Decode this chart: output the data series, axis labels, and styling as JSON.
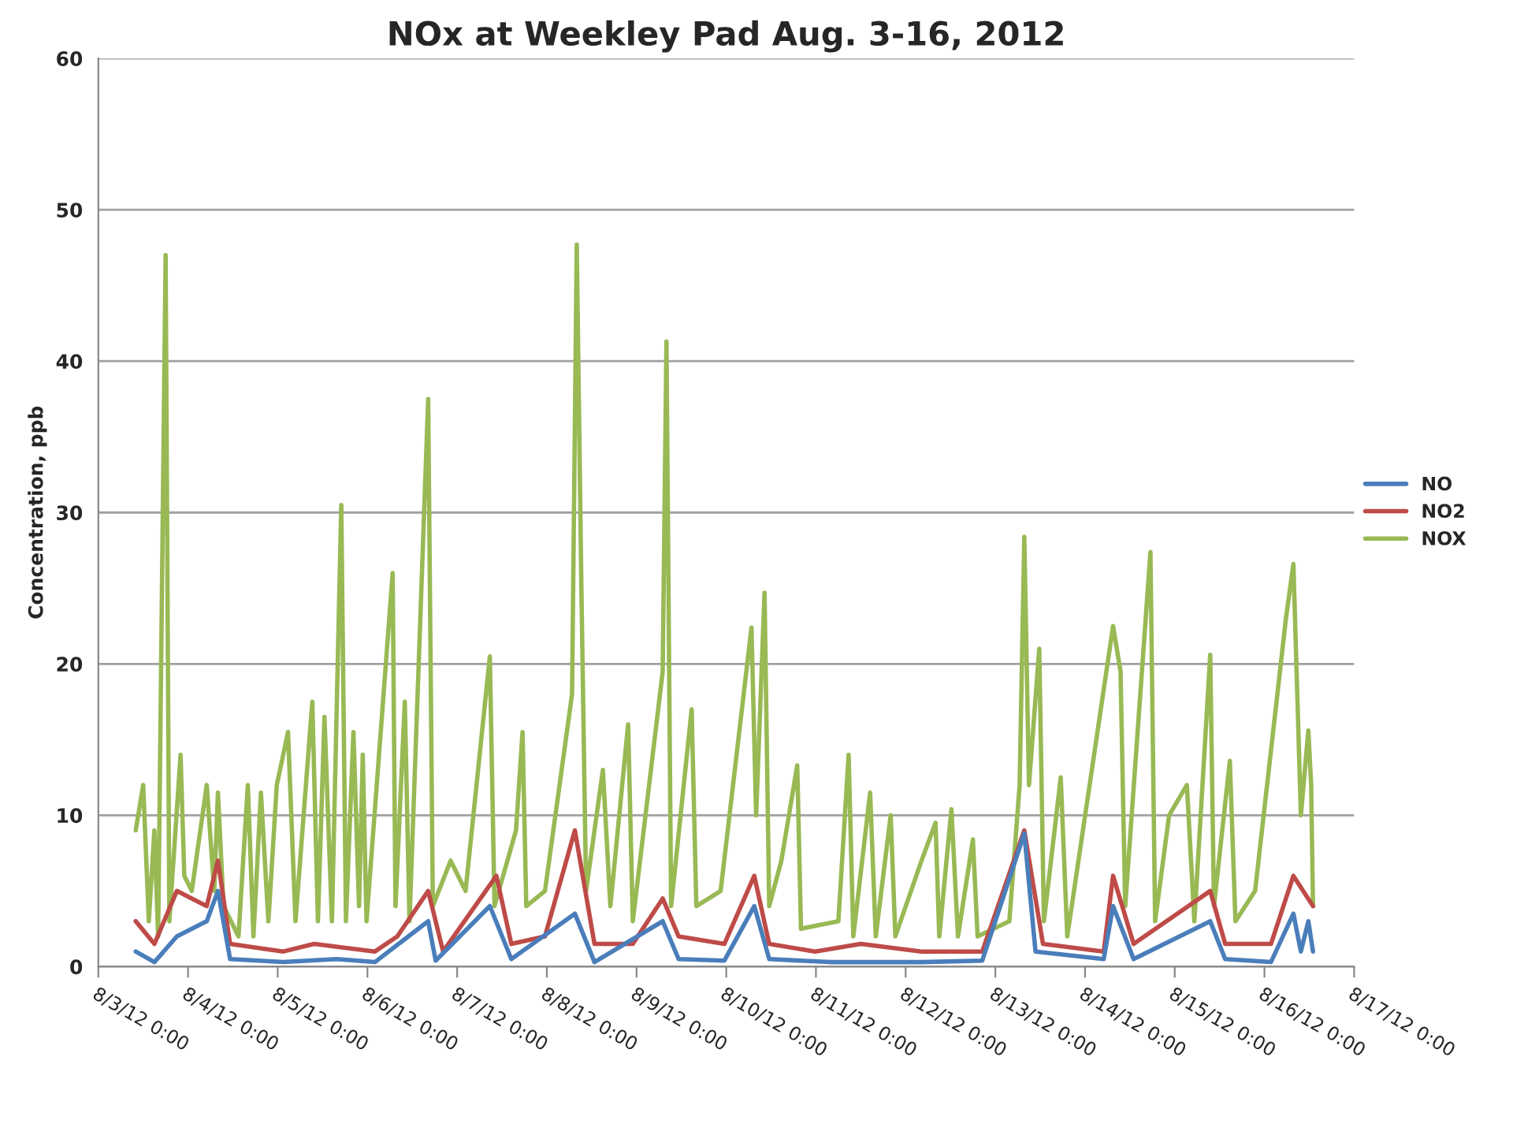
{
  "chart_data": {
    "type": "line",
    "title": "NOx at Weekley Pad Aug. 3-16, 2012",
    "ylabel": "Concentration, ppb",
    "xlim": [
      "2012-08-03",
      "2012-08-17"
    ],
    "xticks": [
      {
        "value": "2012-08-03",
        "label": "8/3/12 0:00"
      },
      {
        "value": "2012-08-04",
        "label": "8/4/12 0:00"
      },
      {
        "value": "2012-08-05",
        "label": "8/5/12 0:00"
      },
      {
        "value": "2012-08-06",
        "label": "8/6/12 0:00"
      },
      {
        "value": "2012-08-07",
        "label": "8/7/12 0:00"
      },
      {
        "value": "2012-08-08",
        "label": "8/8/12 0:00"
      },
      {
        "value": "2012-08-09",
        "label": "8/9/12 0:00"
      },
      {
        "value": "2012-08-10",
        "label": "8/10/12 0:00"
      },
      {
        "value": "2012-08-11",
        "label": "8/11/12 0:00"
      },
      {
        "value": "2012-08-12",
        "label": "8/12/12 0:00"
      },
      {
        "value": "2012-08-13",
        "label": "8/13/12 0:00"
      },
      {
        "value": "2012-08-14",
        "label": "8/14/12 0:00"
      },
      {
        "value": "2012-08-15",
        "label": "8/15/12 0:00"
      },
      {
        "value": "2012-08-16",
        "label": "8/16/12 0:00"
      },
      {
        "value": "2012-08-17",
        "label": "8/17/12 0:00"
      }
    ],
    "ylim": [
      0,
      60
    ],
    "yticks": [
      0,
      10,
      20,
      30,
      40,
      50,
      60
    ],
    "grid": "y",
    "legend": "right",
    "marker": "none",
    "line_style": "solid",
    "series": [
      {
        "name": "NO",
        "color": "#4a7ebb",
        "x": [
          "2012-08-03T10:00",
          "2012-08-03T15:00",
          "2012-08-03T21:00",
          "2012-08-04T05:00",
          "2012-08-04T08:00",
          "2012-08-04T11:15",
          "2012-08-05T01:30",
          "2012-08-05T15:45",
          "2012-08-06T02:00",
          "2012-08-06T16:15",
          "2012-08-06T18:15",
          "2012-08-07T08:45",
          "2012-08-07T14:30",
          "2012-08-08T07:30",
          "2012-08-08T12:45",
          "2012-08-09T07:00",
          "2012-08-09T11:15",
          "2012-08-09T23:30",
          "2012-08-10T07:30",
          "2012-08-10T11:30",
          "2012-08-11T03:45",
          "2012-08-12T04:15",
          "2012-08-12T20:30",
          "2012-08-13T07:45",
          "2012-08-13T10:45",
          "2012-08-14T05:00",
          "2012-08-14T07:30",
          "2012-08-14T13:00",
          "2012-08-15T09:30",
          "2012-08-15T13:30",
          "2012-08-16T01:45",
          "2012-08-16T07:45",
          "2012-08-16T09:45",
          "2012-08-16T11:45",
          "2012-08-16T13:00"
        ],
        "values": [
          1,
          0.3,
          2,
          3,
          5,
          0.5,
          0.3,
          0.5,
          0.3,
          3,
          0.4,
          4,
          0.5,
          3.5,
          0.3,
          3,
          0.5,
          0.4,
          4,
          0.5,
          0.3,
          0.3,
          0.4,
          8.8,
          1,
          0.5,
          4,
          0.5,
          3,
          0.5,
          0.3,
          3.5,
          1,
          3,
          1
        ]
      },
      {
        "name": "NO2",
        "color": "#be4b48",
        "x": [
          "2012-08-03T10:00",
          "2012-08-03T15:00",
          "2012-08-03T21:00",
          "2012-08-04T05:00",
          "2012-08-04T08:00",
          "2012-08-04T11:15",
          "2012-08-05T01:30",
          "2012-08-05T09:45",
          "2012-08-06T02:00",
          "2012-08-06T08:00",
          "2012-08-06T16:15",
          "2012-08-06T20:15",
          "2012-08-07T10:30",
          "2012-08-07T14:30",
          "2012-08-07T23:30",
          "2012-08-08T07:30",
          "2012-08-08T12:45",
          "2012-08-08T23:00",
          "2012-08-09T07:00",
          "2012-08-09T11:15",
          "2012-08-09T23:30",
          "2012-08-10T07:30",
          "2012-08-10T11:30",
          "2012-08-10T23:45",
          "2012-08-11T12:00",
          "2012-08-12T04:15",
          "2012-08-12T12:15",
          "2012-08-12T20:30",
          "2012-08-13T07:45",
          "2012-08-13T12:45",
          "2012-08-14T05:00",
          "2012-08-14T07:30",
          "2012-08-14T13:00",
          "2012-08-15T09:30",
          "2012-08-15T13:30",
          "2012-08-16T01:45",
          "2012-08-16T07:45",
          "2012-08-16T13:00"
        ],
        "values": [
          3,
          1.5,
          5,
          4,
          7,
          1.5,
          1,
          1.5,
          1,
          2,
          5,
          1,
          6,
          1.5,
          2,
          9,
          1.5,
          1.5,
          4.5,
          2,
          1.5,
          6,
          1.5,
          1,
          1.5,
          1,
          1,
          1,
          9,
          1.5,
          1,
          6,
          1.5,
          5,
          1.5,
          1.5,
          6,
          4
        ]
      },
      {
        "name": "NOX",
        "color": "#98b954",
        "x": [
          "2012-08-03T10:00",
          "2012-08-03T12:00",
          "2012-08-03T13:30",
          "2012-08-03T15:00",
          "2012-08-03T16:00",
          "2012-08-03T18:00",
          "2012-08-03T19:00",
          "2012-08-03T22:00",
          "2012-08-03T23:00",
          "2012-08-04T01:00",
          "2012-08-04T05:00",
          "2012-08-04T07:00",
          "2012-08-04T08:00",
          "2012-08-04T09:30",
          "2012-08-04T13:30",
          "2012-08-04T16:00",
          "2012-08-04T17:30",
          "2012-08-04T19:30",
          "2012-08-04T21:30",
          "2012-08-04T23:45",
          "2012-08-05T02:45",
          "2012-08-05T04:45",
          "2012-08-05T09:15",
          "2012-08-05T10:45",
          "2012-08-05T12:30",
          "2012-08-05T14:30",
          "2012-08-05T17:00",
          "2012-08-05T18:15",
          "2012-08-05T20:15",
          "2012-08-05T21:45",
          "2012-08-05T22:45",
          "2012-08-05T23:45",
          "2012-08-06T06:45",
          "2012-08-06T07:30",
          "2012-08-06T10:00",
          "2012-08-06T11:15",
          "2012-08-06T16:15",
          "2012-08-06T17:30",
          "2012-08-06T22:15",
          "2012-08-07T02:15",
          "2012-08-07T08:45",
          "2012-08-07T10:00",
          "2012-08-07T15:45",
          "2012-08-07T17:30",
          "2012-08-07T18:30",
          "2012-08-07T23:30",
          "2012-08-08T06:45",
          "2012-08-08T08:00",
          "2012-08-08T09:15",
          "2012-08-08T10:30",
          "2012-08-08T15:00",
          "2012-08-08T17:00",
          "2012-08-08T21:45",
          "2012-08-08T23:00",
          "2012-08-09T07:00",
          "2012-08-09T08:00",
          "2012-08-09T09:15",
          "2012-08-09T14:45",
          "2012-08-09T16:00",
          "2012-08-09T22:30",
          "2012-08-10T06:45",
          "2012-08-10T08:00",
          "2012-08-10T10:15",
          "2012-08-10T11:30",
          "2012-08-10T14:45",
          "2012-08-10T19:00",
          "2012-08-10T20:00",
          "2012-08-11T06:00",
          "2012-08-11T08:45",
          "2012-08-11T10:00",
          "2012-08-11T14:30",
          "2012-08-11T16:00",
          "2012-08-11T20:00",
          "2012-08-11T21:15",
          "2012-08-12T04:15",
          "2012-08-12T08:00",
          "2012-08-12T09:00",
          "2012-08-12T12:15",
          "2012-08-12T14:00",
          "2012-08-12T18:00",
          "2012-08-12T19:15",
          "2012-08-13T03:45",
          "2012-08-13T06:30",
          "2012-08-13T07:45",
          "2012-08-13T09:00",
          "2012-08-13T11:45",
          "2012-08-13T13:00",
          "2012-08-13T17:30",
          "2012-08-13T19:15",
          "2012-08-14T07:30",
          "2012-08-14T09:30",
          "2012-08-14T10:45",
          "2012-08-14T17:30",
          "2012-08-14T18:45",
          "2012-08-14T22:30",
          "2012-08-15T03:15",
          "2012-08-15T05:15",
          "2012-08-15T09:30",
          "2012-08-15T10:30",
          "2012-08-15T14:45",
          "2012-08-15T16:15",
          "2012-08-15T21:30",
          "2012-08-16T05:45",
          "2012-08-16T07:45",
          "2012-08-16T09:45",
          "2012-08-16T11:45",
          "2012-08-16T12:30",
          "2012-08-16T13:00"
        ],
        "values": [
          9,
          12,
          3,
          9,
          2,
          47,
          3,
          14,
          6,
          5,
          12,
          5,
          11.5,
          4,
          2,
          12,
          2,
          11.5,
          3,
          12,
          15.5,
          3,
          17.5,
          3,
          16.5,
          3,
          30.5,
          3,
          15.5,
          4,
          14,
          3,
          26,
          4,
          17.5,
          3,
          37.5,
          4,
          7,
          5,
          20.5,
          4,
          9,
          15.5,
          4,
          5,
          18,
          47.7,
          25,
          5,
          13,
          4,
          16,
          3,
          19.5,
          41.3,
          4,
          17,
          4,
          5,
          22.4,
          10,
          24.7,
          4,
          7,
          13.3,
          2.5,
          3,
          14,
          2,
          11.5,
          2,
          10,
          2,
          7,
          9.5,
          2,
          10.4,
          2,
          8.4,
          2,
          3,
          12,
          28.4,
          12,
          21,
          3,
          12.5,
          2,
          22.5,
          19.5,
          4,
          27.4,
          3,
          10,
          12,
          3,
          20.6,
          4,
          13.6,
          3,
          5,
          23,
          26.6,
          10,
          15.6,
          12,
          4
        ]
      }
    ]
  }
}
